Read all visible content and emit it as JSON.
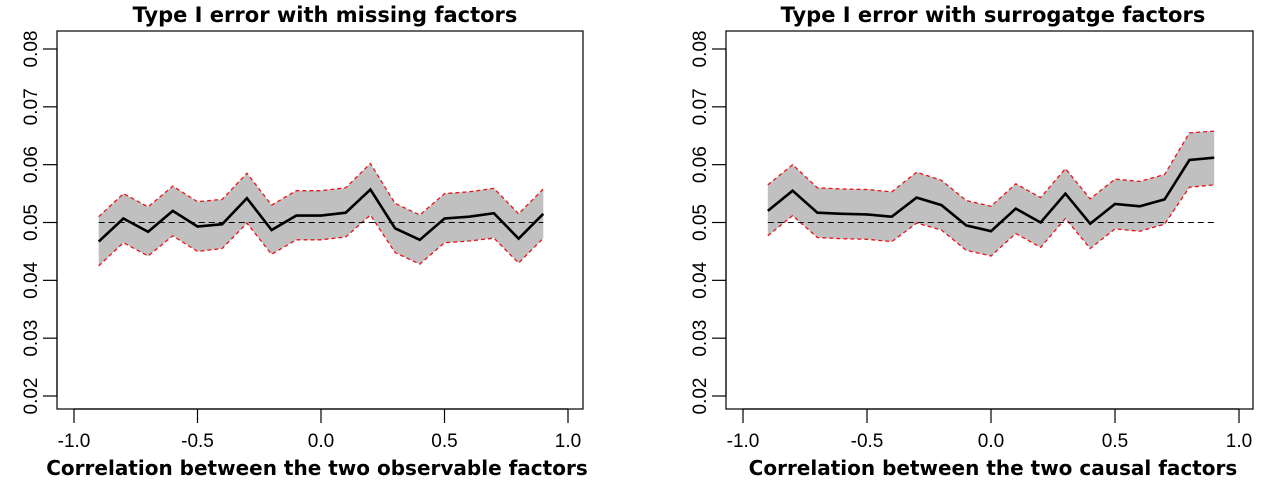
{
  "chart_data": [
    {
      "type": "line",
      "title": "Type I error with missing factors",
      "xlabel": "Correlation between the two observable factors",
      "ylabel": "",
      "xlim": [
        -1.0,
        1.0
      ],
      "ylim": [
        0.02,
        0.08
      ],
      "xticks": [
        -1.0,
        -0.5,
        0.0,
        0.5,
        1.0
      ],
      "xtick_labels": [
        "-1.0",
        "-0.5",
        "0.0",
        "0.5",
        "1.0"
      ],
      "yticks": [
        0.02,
        0.03,
        0.04,
        0.05,
        0.06,
        0.07,
        0.08
      ],
      "ytick_labels": [
        "0.02",
        "0.03",
        "0.04",
        "0.05",
        "0.06",
        "0.07",
        "0.08"
      ],
      "reference_line": 0.05,
      "grid": false,
      "x": [
        -0.9,
        -0.8,
        -0.7,
        -0.6,
        -0.5,
        -0.4,
        -0.3,
        -0.2,
        -0.1,
        0.0,
        0.1,
        0.2,
        0.3,
        0.4,
        0.5,
        0.6,
        0.7,
        0.8,
        0.9
      ],
      "mean": [
        0.0467,
        0.0507,
        0.0484,
        0.052,
        0.0493,
        0.0497,
        0.0542,
        0.0487,
        0.0512,
        0.0512,
        0.0517,
        0.0557,
        0.049,
        0.047,
        0.0507,
        0.051,
        0.0516,
        0.0472,
        0.0515
      ],
      "upper": [
        0.051,
        0.055,
        0.0527,
        0.0563,
        0.0536,
        0.054,
        0.0585,
        0.053,
        0.0555,
        0.0555,
        0.056,
        0.0602,
        0.0533,
        0.0513,
        0.055,
        0.0553,
        0.0559,
        0.0515,
        0.0558
      ],
      "lower": [
        0.0425,
        0.0465,
        0.0442,
        0.0477,
        0.045,
        0.0455,
        0.0499,
        0.0445,
        0.047,
        0.047,
        0.0475,
        0.0513,
        0.0448,
        0.0428,
        0.0465,
        0.0468,
        0.0473,
        0.043,
        0.0473
      ],
      "colors": {
        "line": "#000000",
        "band": "#c0c0c0",
        "band_edge": "#e8141c",
        "reference": "#000000"
      }
    },
    {
      "type": "line",
      "title": "Type I error with surrogatge factors",
      "xlabel": "Correlation between the two causal factors",
      "ylabel": "",
      "xlim": [
        -1.0,
        1.0
      ],
      "ylim": [
        0.02,
        0.08
      ],
      "xticks": [
        -1.0,
        -0.5,
        0.0,
        0.5,
        1.0
      ],
      "xtick_labels": [
        "-1.0",
        "-0.5",
        "0.0",
        "0.5",
        "1.0"
      ],
      "yticks": [
        0.02,
        0.03,
        0.04,
        0.05,
        0.06,
        0.07,
        0.08
      ],
      "ytick_labels": [
        "0.02",
        "0.03",
        "0.04",
        "0.05",
        "0.06",
        "0.07",
        "0.08"
      ],
      "reference_line": 0.05,
      "grid": false,
      "x": [
        -0.9,
        -0.8,
        -0.7,
        -0.6,
        -0.5,
        -0.4,
        -0.3,
        -0.2,
        -0.1,
        0.0,
        0.1,
        0.2,
        0.3,
        0.4,
        0.5,
        0.6,
        0.7,
        0.8,
        0.9
      ],
      "mean": [
        0.052,
        0.0555,
        0.0517,
        0.0515,
        0.0514,
        0.051,
        0.0543,
        0.053,
        0.0495,
        0.0485,
        0.0524,
        0.05,
        0.055,
        0.0498,
        0.0532,
        0.0528,
        0.054,
        0.0608,
        0.0612
      ],
      "upper": [
        0.0565,
        0.06,
        0.056,
        0.0558,
        0.0557,
        0.0553,
        0.0587,
        0.0573,
        0.0538,
        0.0528,
        0.0567,
        0.0543,
        0.0593,
        0.0541,
        0.0575,
        0.0571,
        0.0583,
        0.0655,
        0.0658
      ],
      "lower": [
        0.0477,
        0.0512,
        0.0474,
        0.0472,
        0.0471,
        0.0467,
        0.0499,
        0.0487,
        0.0452,
        0.0442,
        0.0481,
        0.0457,
        0.0507,
        0.0455,
        0.0489,
        0.0485,
        0.0497,
        0.0561,
        0.0565
      ],
      "colors": {
        "line": "#000000",
        "band": "#c0c0c0",
        "band_edge": "#e8141c",
        "reference": "#000000"
      }
    }
  ]
}
